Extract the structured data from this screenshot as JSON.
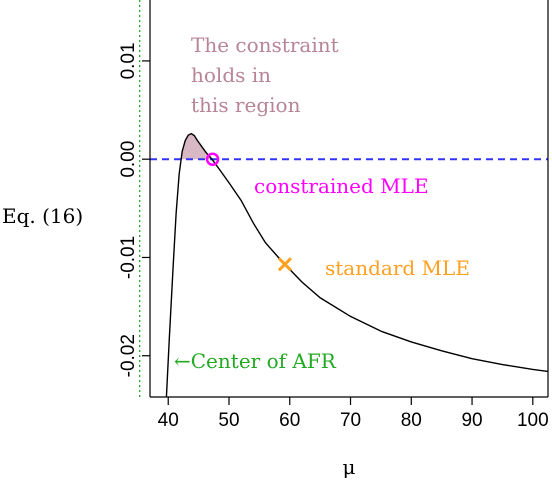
{
  "chart_data": {
    "type": "line",
    "xlabel": "μ",
    "ylabel": "Eq. (16)",
    "xlim": [
      37,
      102.5
    ],
    "ylim": [
      -0.0242,
      0.0162
    ],
    "x_ticks": [
      40,
      50,
      60,
      70,
      80,
      90,
      100
    ],
    "x_tick_labels": [
      "40",
      "50",
      "60",
      "70",
      "80",
      "90",
      "100"
    ],
    "y_ticks": [
      -0.02,
      -0.01,
      0.0,
      0.01
    ],
    "y_tick_labels": [
      "-0.02",
      "-0.01",
      "0.00",
      "0.01"
    ],
    "grid": false,
    "legend": "none",
    "series": [
      {
        "x": [
          39.7,
          40.2,
          40.8,
          41.3,
          41.8,
          42.3,
          42.8,
          43.3,
          43.8,
          44.3,
          44.8,
          45.5,
          46.2,
          47.2,
          48.5,
          50,
          52,
          54,
          56,
          58,
          59.2,
          62,
          65,
          70,
          75,
          80,
          85,
          90,
          95,
          100,
          102.5
        ],
        "y": [
          -0.0242,
          -0.018,
          -0.011,
          -0.0055,
          -0.0015,
          0.0008,
          0.0019,
          0.00245,
          0.0026,
          0.0024,
          0.0019,
          0.0013,
          0.0007,
          0.0,
          -0.0011,
          -0.0024,
          -0.0042,
          -0.0065,
          -0.0085,
          -0.0099,
          -0.0107,
          -0.0125,
          -0.0141,
          -0.016,
          -0.0175,
          -0.0186,
          -0.0195,
          -0.0203,
          -0.0209,
          -0.0214,
          -0.0216
        ],
        "color": "#000000"
      }
    ],
    "reference_lines": [
      {
        "orientation": "horizontal",
        "value": 0.0,
        "color": "#3333ff",
        "style": "dashed"
      },
      {
        "orientation": "vertical",
        "value": 35.3,
        "color": "#22aa22",
        "style": "dotted"
      }
    ],
    "shaded_region": {
      "color": "#d9b8c6",
      "description": "area under curve above y=0"
    },
    "points": [
      {
        "label": "constrained MLE",
        "x": 47.3,
        "y": 0.0,
        "marker": "circle",
        "color": "#ff00ff"
      },
      {
        "label": "standard MLE",
        "x": 59.2,
        "y": -0.0107,
        "marker": "x",
        "color": "#ffa020"
      }
    ],
    "annotations": [
      {
        "lines": [
          "The constraint",
          "holds in",
          "this region"
        ],
        "color": "#b88497"
      },
      {
        "text": "←Center of AFR",
        "color": "#22aa22"
      }
    ]
  }
}
